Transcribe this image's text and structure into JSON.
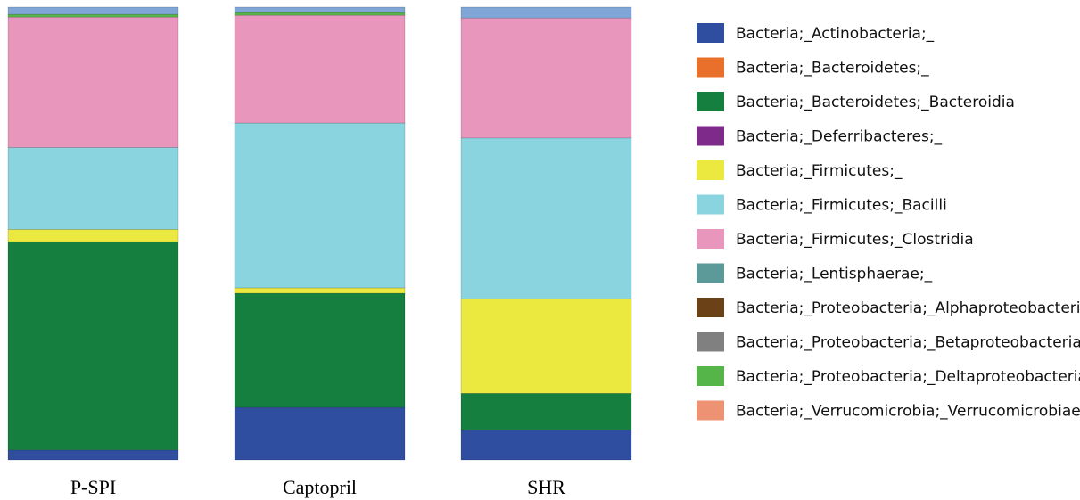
{
  "chart_data": {
    "type": "bar",
    "stacked": true,
    "normalized": true,
    "title": "",
    "xlabel": "",
    "ylabel": "",
    "ylim": [
      0,
      1
    ],
    "grid": false,
    "legend_position": "right",
    "categories": [
      "P-SPI",
      "Captopril",
      "SHR"
    ],
    "series": [
      {
        "name": "Bacteria;_Actinobacteria;_",
        "color": "#2f4ea0",
        "values": [
          0.022,
          0.116,
          0.066
        ]
      },
      {
        "name": "Bacteria;_Bacteroidetes;_",
        "color": "#e8702a",
        "values": [
          0.0,
          0.0,
          0.0
        ]
      },
      {
        "name": "Bacteria;_Bacteroidetes;_Bacteroidia",
        "color": "#147f3f",
        "values": [
          0.46,
          0.252,
          0.081
        ]
      },
      {
        "name": "Bacteria;_Deferribacteres;_",
        "color": "#7e2a8b",
        "values": [
          0.0,
          0.0,
          0.0
        ]
      },
      {
        "name": "Bacteria;_Firmicutes;_",
        "color": "#ebe83f",
        "values": [
          0.027,
          0.012,
          0.208
        ]
      },
      {
        "name": "Bacteria;_Firmicutes;_Bacilli",
        "color": "#89d4df",
        "values": [
          0.181,
          0.364,
          0.356
        ]
      },
      {
        "name": "Bacteria;_Firmicutes;_Clostridia",
        "color": "#e996bd",
        "values": [
          0.288,
          0.238,
          0.265
        ]
      },
      {
        "name": "Bacteria;_Lentisphaerae;_",
        "color": "#5b9a98",
        "values": [
          0.0,
          0.0,
          0.0
        ]
      },
      {
        "name": "Bacteria;_Proteobacteria;_Alphaproteobacteria",
        "color": "#6b4218",
        "values": [
          0.0,
          0.0,
          0.0
        ]
      },
      {
        "name": "Bacteria;_Proteobacteria;_Betaproteobacteria",
        "color": "#808080",
        "values": [
          0.0,
          0.0,
          0.0
        ]
      },
      {
        "name": "Bacteria;_Proteobacteria;_Deltaproteobacteria",
        "color": "#55b548",
        "values": [
          0.006,
          0.006,
          0.0
        ]
      },
      {
        "name": "Bacteria;_Verrucomicrobia;_Verrucomicrobiae",
        "color": "#ee9274",
        "values": [
          0.0,
          0.0,
          0.0
        ]
      },
      {
        "name": "",
        "color": "#7fa6d6",
        "values": [
          0.016,
          0.012,
          0.024
        ]
      }
    ]
  }
}
